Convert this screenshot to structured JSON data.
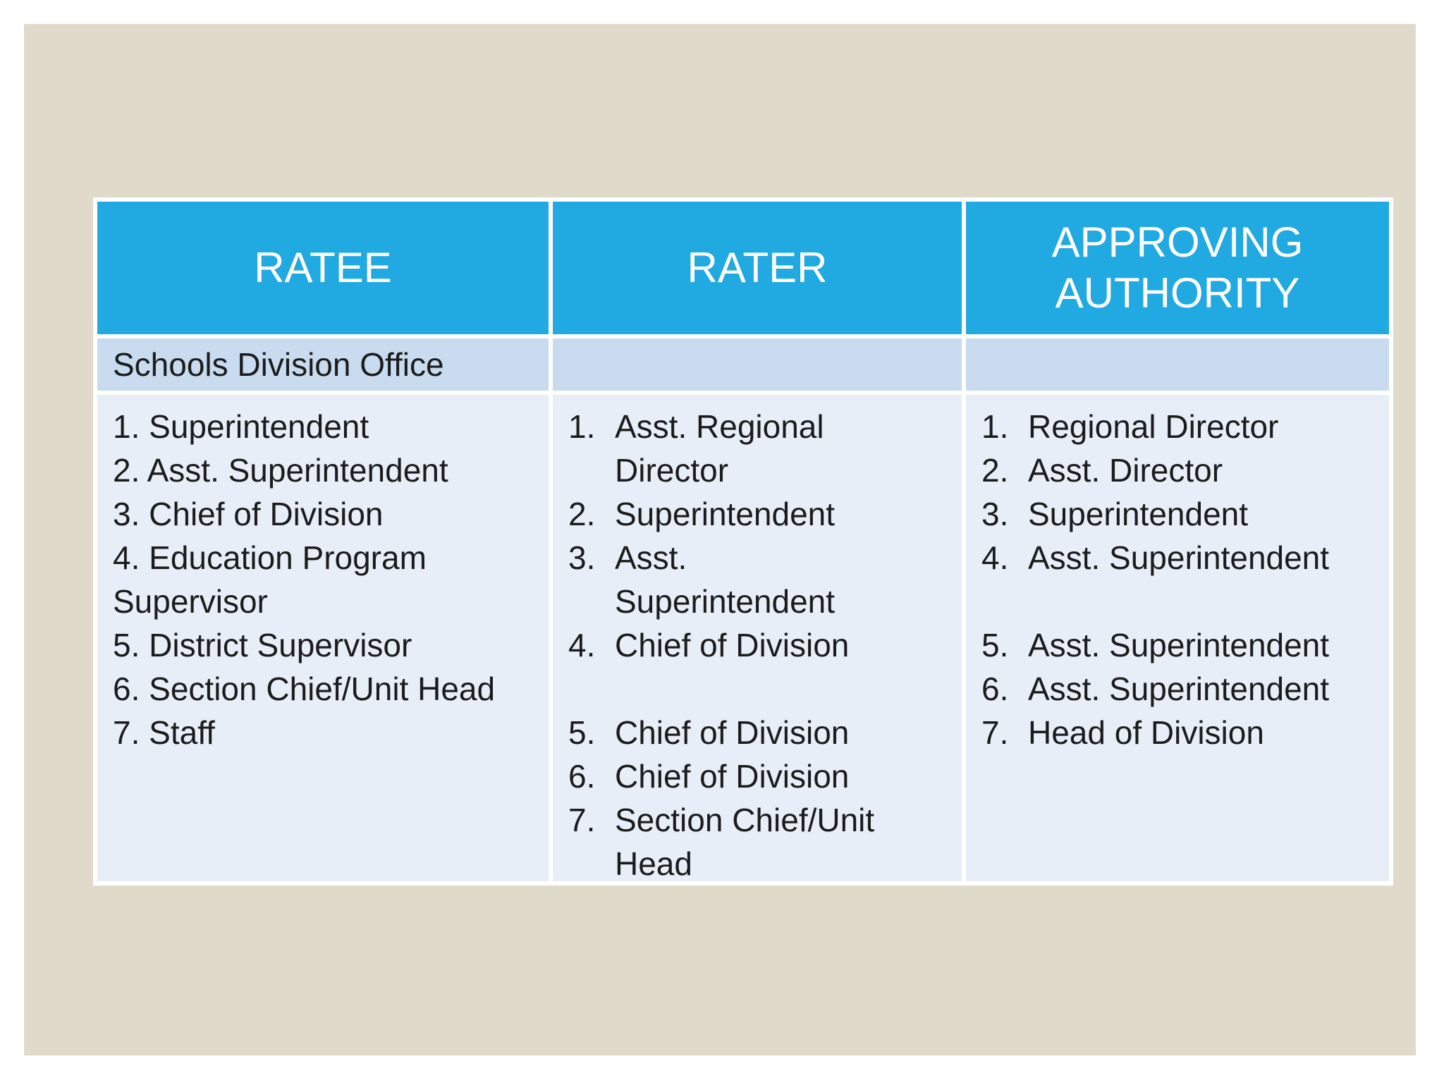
{
  "slide": {
    "background_color": "#DFDACA",
    "frame_color": "#FFFFFF"
  },
  "table": {
    "header": [
      "RATEE",
      "RATER",
      "APPROVING AUTHORITY"
    ],
    "section_row": "Schools Division Office",
    "colors": {
      "header_bg": "#21A9E1",
      "header_text": "#FFFFFF",
      "section_row_bg": "#C8DBEF",
      "body_bg": "#E8EEF8",
      "body_text": "#1C1C1C",
      "grid_lines": "#FFFFFF"
    },
    "columns": [
      {
        "name": "ratee",
        "list_style": "inline",
        "items": [
          {
            "num": "1.",
            "text": "Superintendent"
          },
          {
            "num": "2.",
            "text": "Asst. Superintendent"
          },
          {
            "num": "3.",
            "text": "Chief of Division"
          },
          {
            "num": "4.",
            "text": "Education Program Supervisor"
          },
          {
            "num": "5.",
            "text": "District Supervisor"
          },
          {
            "num": "6.",
            "text": "Section Chief/Unit Head"
          },
          {
            "num": "7.",
            "text": "Staff"
          }
        ]
      },
      {
        "name": "rater",
        "list_style": "hanging",
        "items": [
          {
            "num": "1.",
            "text": "Asst. Regional Director"
          },
          {
            "num": "2.",
            "text": "Superintendent"
          },
          {
            "num": "3.",
            "text": "Asst. Superintendent"
          },
          {
            "num": "4.",
            "text": "Chief of Division"
          },
          {
            "num": "5.",
            "text": "Chief of Division",
            "gap_before": true
          },
          {
            "num": "6.",
            "text": "Chief of Division"
          },
          {
            "num": "7.",
            "text": "Section Chief/Unit Head"
          }
        ]
      },
      {
        "name": "approving",
        "list_style": "hanging",
        "items": [
          {
            "num": "1.",
            "text": "Regional Director"
          },
          {
            "num": "2.",
            "text": "Asst. Director"
          },
          {
            "num": "3.",
            "text": "Superintendent"
          },
          {
            "num": "4.",
            "text": "Asst. Superintendent"
          },
          {
            "num": "5.",
            "text": "Asst. Superintendent",
            "gap_before": true
          },
          {
            "num": "6.",
            "text": "Asst. Superintendent"
          },
          {
            "num": "7.",
            "text": "Head of Division"
          }
        ]
      }
    ]
  }
}
